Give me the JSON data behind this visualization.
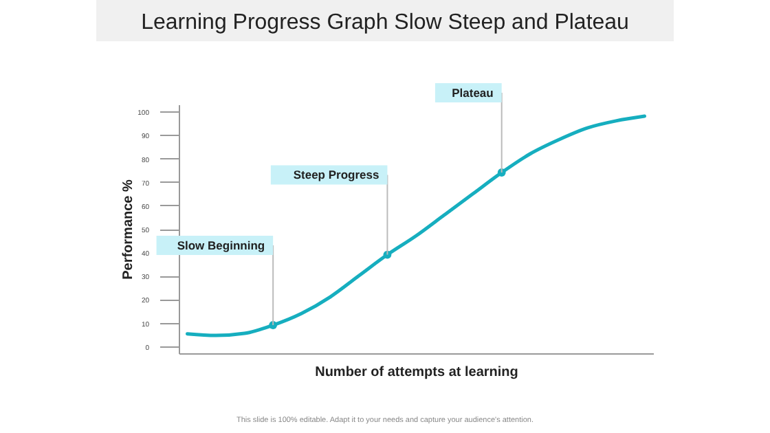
{
  "chart_data": {
    "type": "line",
    "title": "Learning Progress Graph Slow Steep and Plateau",
    "xlabel": "Number of attempts at learning",
    "ylabel": "Performance %",
    "categories": [
      null,
      null,
      null,
      null,
      null,
      null,
      null,
      null,
      null,
      null,
      null,
      null,
      null,
      null,
      null,
      null,
      null
    ],
    "series": [
      {
        "color": "#16aebf",
        "marker": "none",
        "values": [
          5.3,
          4.6,
          5.5,
          9,
          14,
          21,
          30,
          39,
          47,
          56,
          65,
          74,
          82,
          88,
          93,
          96,
          98
        ]
      },
      {
        "type": "scatter",
        "color": "#16aebf",
        "marker": "circle",
        "values": [
          null,
          null,
          null,
          9,
          null,
          null,
          null,
          39,
          null,
          null,
          null,
          74,
          null,
          null,
          null,
          null,
          null
        ]
      }
    ],
    "ylim": [
      -3,
      103
    ],
    "yticks": [
      0,
      10,
      20,
      30,
      40,
      50,
      60,
      70,
      80,
      90,
      100
    ],
    "tick_labels": "y",
    "annotations": [
      "Slow Beginning",
      "Steep Progress",
      "Plateau",
      "This slide is 100% editable. Adapt it to your needs and capture your audience's attention."
    ]
  }
}
